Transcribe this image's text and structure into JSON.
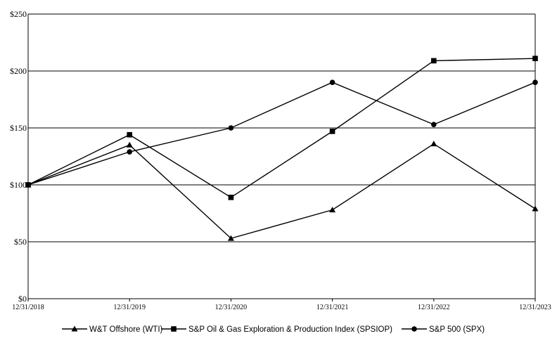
{
  "chart_data": {
    "type": "line",
    "x": [
      "12/31/2018",
      "12/31/2019",
      "12/31/2020",
      "12/31/2021",
      "12/31/2022",
      "12/31/2023"
    ],
    "ylim": [
      0,
      250
    ],
    "yticks": [
      0,
      50,
      100,
      150,
      200,
      250
    ],
    "ytick_labels": [
      "$0",
      "$50",
      "$100",
      "$150",
      "$200",
      "$250"
    ],
    "grid": "horizontal",
    "legend_position": "bottom",
    "series": [
      {
        "name": "W&T Offshore (WTI)",
        "marker": "triangle",
        "values": [
          100,
          135,
          53,
          78,
          136,
          79
        ]
      },
      {
        "name": "S&P Oil & Gas Exploration & Production Index (SPSIOP)",
        "marker": "square",
        "values": [
          100,
          144,
          89,
          147,
          209,
          211
        ]
      },
      {
        "name": "S&P 500 (SPX)",
        "marker": "circle",
        "values": [
          100,
          129,
          150,
          190,
          153,
          190
        ]
      }
    ],
    "colors": {
      "line": "#000000",
      "grid": "#000000",
      "background": "#ffffff"
    }
  }
}
